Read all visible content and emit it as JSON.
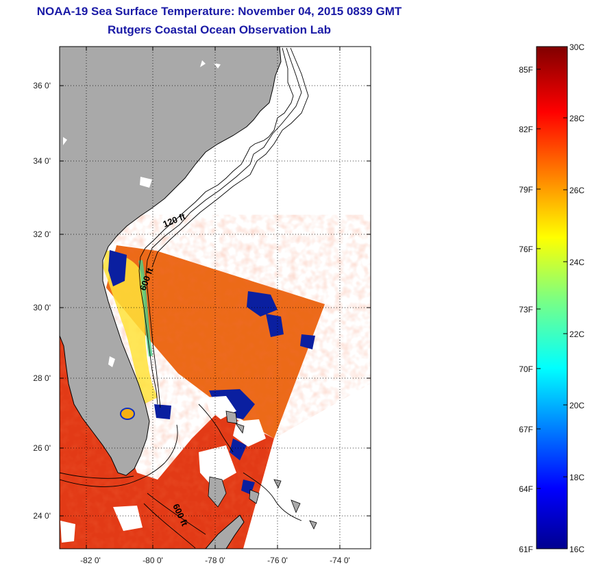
{
  "title": {
    "line1": "NOAA-19 Sea Surface Temperature:  November 04, 2015 0839 GMT",
    "line2": "Rutgers Coastal Ocean Observation Lab"
  },
  "map": {
    "lat_ticks": [
      "36 0'",
      "34 0'",
      "32 0'",
      "30 0'",
      "28 0'",
      "26 0'",
      "24 0'"
    ],
    "lon_ticks": [
      "-82 0'",
      "-80 0'",
      "-78 0'",
      "-76 0'",
      "-74 0'"
    ],
    "isobath_labels": [
      "120 ft",
      "600 ft",
      "600 ft"
    ],
    "colors": {
      "land": "#a9a9a9",
      "sea_nodata": "#ffffff",
      "warm": "#e8401a",
      "cool": "#0a1a8a"
    }
  },
  "colorbar": {
    "celsius": [
      "30C",
      "28C",
      "26C",
      "24C",
      "22C",
      "20C",
      "18C",
      "16C"
    ],
    "fahrenheit": [
      "85F",
      "82F",
      "79F",
      "76F",
      "73F",
      "70F",
      "67F",
      "64F",
      "61F"
    ],
    "colormap": "jet"
  }
}
